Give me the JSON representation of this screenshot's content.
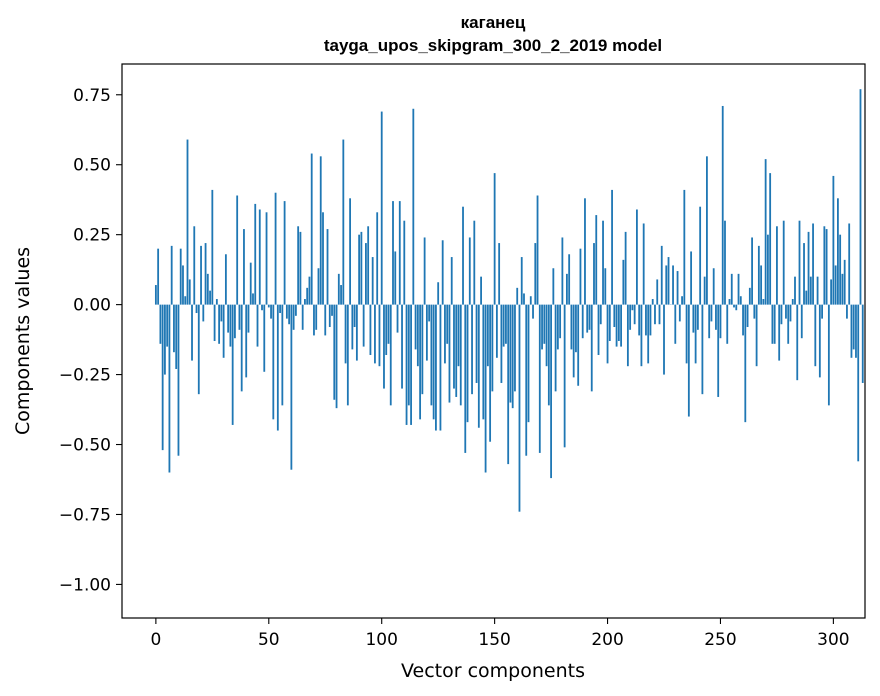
{
  "chart_data": {
    "type": "bar",
    "title": "каганец",
    "subtitle": "tayga_upos_skipgram_300_2_2019 model",
    "xlabel": "Vector components",
    "ylabel": "Components values",
    "xlim": [
      -15,
      314
    ],
    "ylim": [
      -1.12,
      0.86
    ],
    "xticks": [
      0,
      50,
      100,
      150,
      200,
      250,
      300
    ],
    "yticks": [
      0.75,
      0.5,
      0.25,
      0.0,
      -0.25,
      -0.5,
      -0.75,
      -1.0
    ],
    "ytick_labels": [
      "0.75",
      "0.50",
      "0.25",
      "0.00",
      "−0.25",
      "−0.50",
      "−0.75",
      "−1.00"
    ],
    "xtick_labels": [
      "0",
      "50",
      "100",
      "150",
      "200",
      "250",
      "300"
    ],
    "bar_color": "#1f77b4",
    "values": [
      0.07,
      0.2,
      -0.14,
      -0.52,
      -0.25,
      -0.15,
      -0.6,
      0.21,
      -0.17,
      -0.23,
      -0.54,
      0.2,
      0.14,
      0.03,
      0.59,
      0.09,
      -0.2,
      0.28,
      -0.03,
      -0.32,
      0.21,
      -0.06,
      0.22,
      0.11,
      0.05,
      0.41,
      -0.13,
      0.02,
      -0.14,
      -0.06,
      -0.19,
      0.18,
      -0.1,
      -0.15,
      -0.43,
      -0.12,
      0.39,
      -0.09,
      -0.31,
      0.27,
      -0.26,
      -0.1,
      0.15,
      0.04,
      0.36,
      -0.15,
      0.34,
      -0.02,
      -0.24,
      0.33,
      -0.01,
      -0.05,
      -0.41,
      0.4,
      -0.45,
      -0.03,
      -0.36,
      0.37,
      -0.05,
      -0.07,
      -0.59,
      -0.09,
      -0.04,
      0.28,
      0.26,
      -0.09,
      0.02,
      0.06,
      0.1,
      0.54,
      -0.11,
      -0.09,
      0.13,
      0.53,
      0.33,
      -0.11,
      0.27,
      -0.08,
      -0.04,
      -0.34,
      -0.37,
      0.11,
      0.07,
      0.59,
      -0.21,
      -0.36,
      0.38,
      -0.16,
      -0.08,
      -0.2,
      0.25,
      0.26,
      -0.15,
      0.22,
      0.28,
      -0.18,
      0.17,
      -0.21,
      0.33,
      -0.22,
      0.69,
      -0.3,
      -0.18,
      -0.14,
      -0.36,
      0.37,
      0.19,
      -0.1,
      0.37,
      -0.3,
      0.3,
      -0.43,
      -0.36,
      -0.43,
      0.7,
      -0.16,
      -0.22,
      -0.41,
      -0.32,
      0.24,
      -0.2,
      -0.06,
      -0.36,
      -0.41,
      -0.45,
      0.08,
      -0.45,
      0.23,
      -0.21,
      -0.14,
      -0.35,
      0.17,
      -0.3,
      -0.33,
      -0.22,
      -0.36,
      0.35,
      -0.53,
      -0.42,
      0.24,
      -0.32,
      0.3,
      -0.28,
      -0.44,
      0.1,
      -0.41,
      -0.6,
      -0.22,
      -0.49,
      -0.31,
      0.47,
      -0.19,
      0.22,
      -0.28,
      -0.15,
      -0.14,
      -0.57,
      -0.35,
      -0.37,
      -0.31,
      0.06,
      -0.74,
      0.17,
      0.04,
      -0.54,
      -0.42,
      0.03,
      -0.05,
      0.22,
      0.39,
      -0.53,
      -0.16,
      -0.14,
      -0.22,
      -0.36,
      -0.62,
      0.13,
      -0.31,
      -0.16,
      -0.12,
      0.24,
      -0.51,
      0.11,
      0.18,
      -0.16,
      -0.26,
      -0.17,
      -0.29,
      0.2,
      -0.12,
      0.38,
      -0.1,
      -0.09,
      -0.31,
      0.22,
      0.32,
      -0.18,
      -0.07,
      0.3,
      0.13,
      -0.21,
      -0.13,
      0.41,
      -0.08,
      -0.15,
      -0.13,
      -0.15,
      0.16,
      0.26,
      -0.22,
      -0.09,
      -0.02,
      -0.07,
      0.34,
      -0.11,
      -0.22,
      0.29,
      -0.11,
      -0.21,
      -0.11,
      0.02,
      -0.07,
      0.09,
      -0.07,
      0.21,
      -0.25,
      0.14,
      0.17,
      0.0,
      0.14,
      -0.14,
      0.12,
      -0.06,
      0.03,
      0.41,
      -0.21,
      -0.4,
      0.19,
      -0.1,
      -0.21,
      -0.09,
      0.35,
      -0.32,
      0.1,
      0.53,
      -0.12,
      -0.06,
      0.13,
      -0.09,
      -0.33,
      -0.12,
      0.71,
      0.3,
      -0.14,
      0.02,
      0.11,
      -0.01,
      -0.02,
      0.11,
      0.03,
      -0.11,
      -0.42,
      -0.08,
      0.06,
      0.24,
      -0.05,
      -0.22,
      0.21,
      0.14,
      0.02,
      0.52,
      0.25,
      0.47,
      -0.14,
      -0.14,
      0.28,
      -0.2,
      -0.07,
      0.3,
      -0.05,
      -0.14,
      -0.06,
      0.02,
      0.1,
      -0.27,
      0.3,
      -0.12,
      0.22,
      0.05,
      0.26,
      0.1,
      0.29,
      -0.22,
      0.1,
      -0.26,
      -0.05,
      0.28,
      0.27,
      -0.36,
      0.09,
      0.46,
      0.14,
      0.38,
      0.25,
      0.11,
      0.16,
      -0.05,
      0.29,
      -0.19,
      -0.16,
      -0.19,
      -0.56,
      0.77,
      -0.28
    ]
  }
}
